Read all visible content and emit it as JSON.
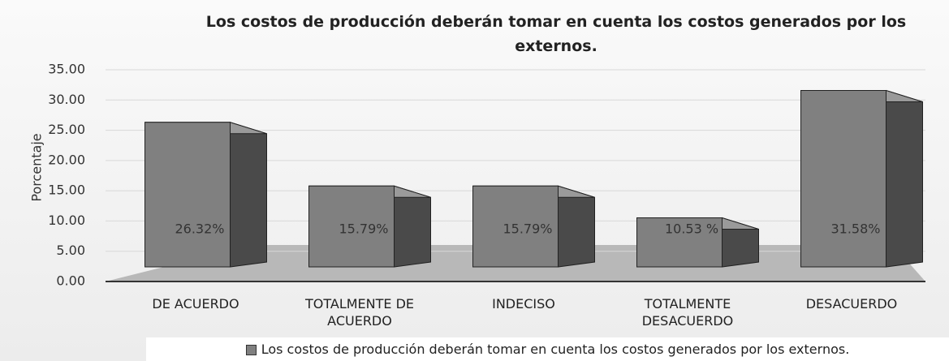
{
  "chart_data": {
    "type": "bar",
    "title": "Los costos de producción deberán tomar en cuenta los costos generados por los externos.",
    "y_label": "Porcentaje",
    "categories": [
      "DE ACUERDO",
      "TOTALMENTE DE ACUERDO",
      "INDECISO",
      "TOTALMENTE DESACUERDO",
      "DESACUERDO"
    ],
    "series": [
      {
        "name": "Los costos de producción deberán tomar en cuenta los costos generados por los externos.",
        "color": "#808080",
        "values": [
          26.32,
          15.79,
          15.79,
          10.53,
          31.58
        ],
        "value_labels": [
          "26.32%",
          "15.79%",
          "15.79%",
          "10.53 %",
          "31.58%"
        ]
      }
    ],
    "ylim": [
      0,
      35
    ],
    "yticks": [
      {
        "value": 0,
        "label": "0.00"
      },
      {
        "value": 5,
        "label": "5.00"
      },
      {
        "value": 10,
        "label": "10.00"
      },
      {
        "value": 15,
        "label": "15.00"
      },
      {
        "value": 20,
        "label": "20.00"
      },
      {
        "value": 25,
        "label": "25.00"
      },
      {
        "value": 30,
        "label": "30.00"
      },
      {
        "value": 35,
        "label": "35.00"
      }
    ],
    "grid": true,
    "legend": "bottom"
  }
}
